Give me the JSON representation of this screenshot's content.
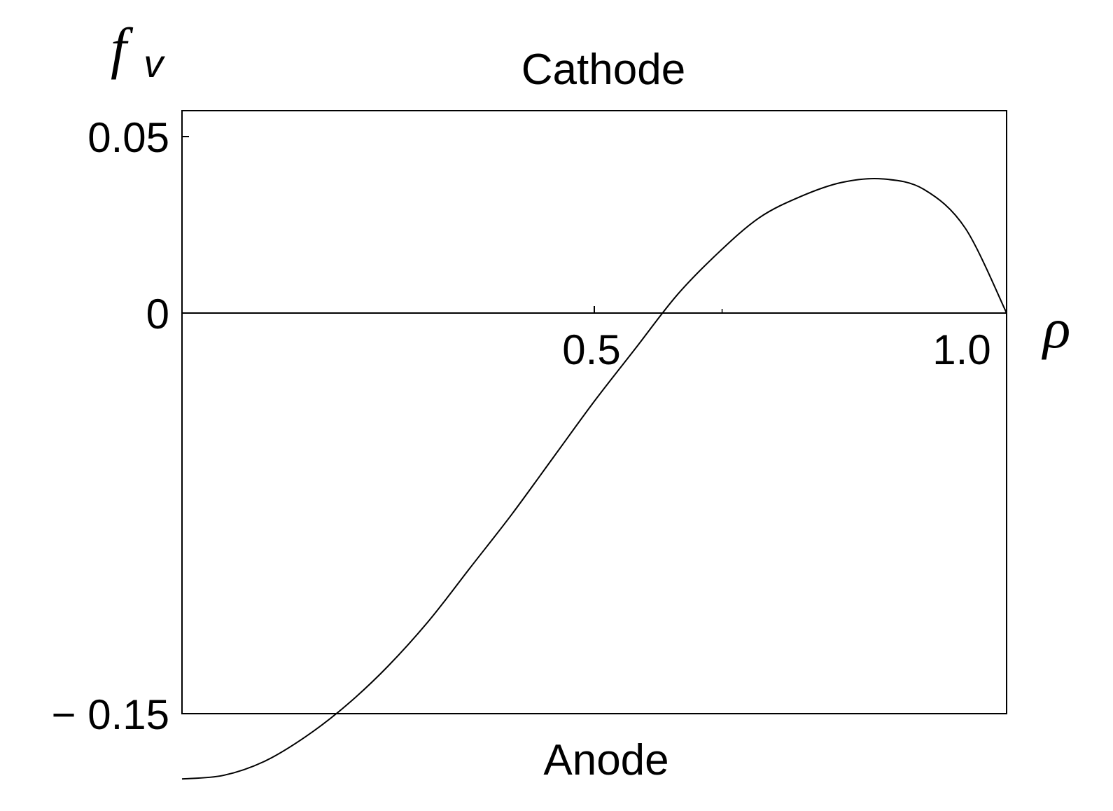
{
  "chart_data": {
    "type": "line",
    "title": "",
    "xlabel": "ρ",
    "ylabel": {
      "main": "f",
      "sub": "v"
    },
    "top_label": "Cathode",
    "bottom_label": "Anode",
    "xlim": [
      0.0,
      1.0
    ],
    "ylim": [
      -0.15,
      0.05
    ],
    "x_ticks": [
      {
        "value": 0.5,
        "label": "0.5"
      },
      {
        "value": 1.0,
        "label": "1.0"
      }
    ],
    "y_ticks": [
      {
        "value": 0.05,
        "label": "0.05"
      },
      {
        "value": 0,
        "label": "0"
      },
      {
        "value": -0.15,
        "label": "− 0.15"
      }
    ],
    "grid": false,
    "series": [
      {
        "x": [
          0.0,
          0.05,
          0.1,
          0.15,
          0.2,
          0.25,
          0.3,
          0.35,
          0.4,
          0.45,
          0.5,
          0.55,
          0.6,
          0.65,
          0.7,
          0.75,
          0.8,
          0.85,
          0.9,
          0.95,
          1.0
        ],
        "values": [
          -0.132,
          -0.131,
          -0.127,
          -0.12,
          -0.111,
          -0.1,
          -0.087,
          -0.072,
          -0.057,
          -0.041,
          -0.025,
          -0.01,
          0.005,
          0.017,
          0.027,
          0.033,
          0.037,
          0.038,
          0.035,
          0.024,
          0.0
        ]
      }
    ]
  }
}
